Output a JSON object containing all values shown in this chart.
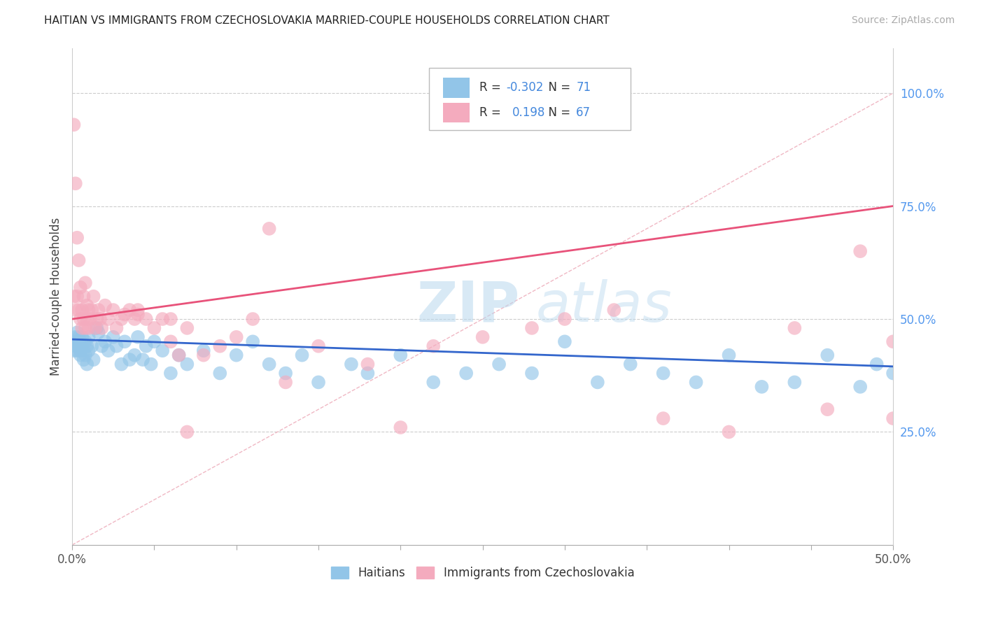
{
  "title": "HAITIAN VS IMMIGRANTS FROM CZECHOSLOVAKIA MARRIED-COUPLE HOUSEHOLDS CORRELATION CHART",
  "source": "Source: ZipAtlas.com",
  "ylabel": "Married-couple Households",
  "watermark": "ZIPatlas",
  "xlim": [
    0.0,
    0.5
  ],
  "ylim": [
    0.0,
    1.1
  ],
  "xticklabels_ends": [
    "0.0%",
    "50.0%"
  ],
  "yticks_right": [
    0.25,
    0.5,
    0.75,
    1.0
  ],
  "yticklabels_right": [
    "25.0%",
    "50.0%",
    "75.0%",
    "100.0%"
  ],
  "blue_color": "#92C5E8",
  "pink_color": "#F4ABBE",
  "blue_line_color": "#3366CC",
  "pink_line_color": "#E8527A",
  "ref_line_color": "#F0C0C8",
  "legend_R1": "-0.302",
  "legend_N1": "71",
  "legend_R2": "0.198",
  "legend_N2": "67",
  "legend_label1": "Haitians",
  "legend_label2": "Immigrants from Czechoslovakia",
  "blue_R": -0.302,
  "pink_R": 0.198,
  "blue_scatter_x": [
    0.001,
    0.001,
    0.002,
    0.002,
    0.003,
    0.003,
    0.003,
    0.004,
    0.004,
    0.005,
    0.005,
    0.005,
    0.006,
    0.006,
    0.007,
    0.007,
    0.008,
    0.008,
    0.009,
    0.009,
    0.01,
    0.01,
    0.012,
    0.013,
    0.015,
    0.016,
    0.018,
    0.02,
    0.022,
    0.025,
    0.027,
    0.03,
    0.032,
    0.035,
    0.038,
    0.04,
    0.043,
    0.045,
    0.048,
    0.05,
    0.055,
    0.06,
    0.065,
    0.07,
    0.08,
    0.09,
    0.1,
    0.11,
    0.12,
    0.13,
    0.14,
    0.15,
    0.17,
    0.18,
    0.2,
    0.22,
    0.24,
    0.26,
    0.28,
    0.3,
    0.32,
    0.34,
    0.36,
    0.38,
    0.4,
    0.42,
    0.44,
    0.46,
    0.48,
    0.49,
    0.5
  ],
  "blue_scatter_y": [
    0.45,
    0.43,
    0.46,
    0.44,
    0.45,
    0.47,
    0.43,
    0.44,
    0.46,
    0.42,
    0.45,
    0.43,
    0.44,
    0.46,
    0.41,
    0.43,
    0.45,
    0.42,
    0.4,
    0.44,
    0.46,
    0.43,
    0.44,
    0.41,
    0.48,
    0.47,
    0.44,
    0.45,
    0.43,
    0.46,
    0.44,
    0.4,
    0.45,
    0.41,
    0.42,
    0.46,
    0.41,
    0.44,
    0.4,
    0.45,
    0.43,
    0.38,
    0.42,
    0.4,
    0.43,
    0.38,
    0.42,
    0.45,
    0.4,
    0.38,
    0.42,
    0.36,
    0.4,
    0.38,
    0.42,
    0.36,
    0.38,
    0.4,
    0.38,
    0.45,
    0.36,
    0.4,
    0.38,
    0.36,
    0.42,
    0.35,
    0.36,
    0.42,
    0.35,
    0.4,
    0.38
  ],
  "pink_scatter_x": [
    0.001,
    0.001,
    0.002,
    0.002,
    0.003,
    0.003,
    0.004,
    0.004,
    0.005,
    0.005,
    0.006,
    0.006,
    0.007,
    0.007,
    0.008,
    0.008,
    0.009,
    0.009,
    0.01,
    0.01,
    0.011,
    0.012,
    0.013,
    0.014,
    0.015,
    0.016,
    0.017,
    0.018,
    0.02,
    0.022,
    0.025,
    0.027,
    0.03,
    0.032,
    0.035,
    0.038,
    0.04,
    0.045,
    0.05,
    0.055,
    0.06,
    0.065,
    0.07,
    0.08,
    0.09,
    0.1,
    0.11,
    0.13,
    0.15,
    0.18,
    0.2,
    0.22,
    0.25,
    0.28,
    0.3,
    0.33,
    0.36,
    0.4,
    0.44,
    0.46,
    0.48,
    0.5,
    0.5,
    0.12,
    0.04,
    0.06,
    0.07
  ],
  "pink_scatter_y": [
    0.93,
    0.55,
    0.8,
    0.52,
    0.68,
    0.55,
    0.63,
    0.52,
    0.57,
    0.5,
    0.52,
    0.48,
    0.55,
    0.5,
    0.58,
    0.48,
    0.53,
    0.5,
    0.52,
    0.48,
    0.5,
    0.52,
    0.55,
    0.48,
    0.5,
    0.52,
    0.5,
    0.48,
    0.53,
    0.5,
    0.52,
    0.48,
    0.5,
    0.51,
    0.52,
    0.5,
    0.51,
    0.5,
    0.48,
    0.5,
    0.45,
    0.42,
    0.48,
    0.42,
    0.44,
    0.46,
    0.5,
    0.36,
    0.44,
    0.4,
    0.26,
    0.44,
    0.46,
    0.48,
    0.5,
    0.52,
    0.28,
    0.25,
    0.48,
    0.3,
    0.65,
    0.28,
    0.45,
    0.7,
    0.52,
    0.5,
    0.25
  ]
}
